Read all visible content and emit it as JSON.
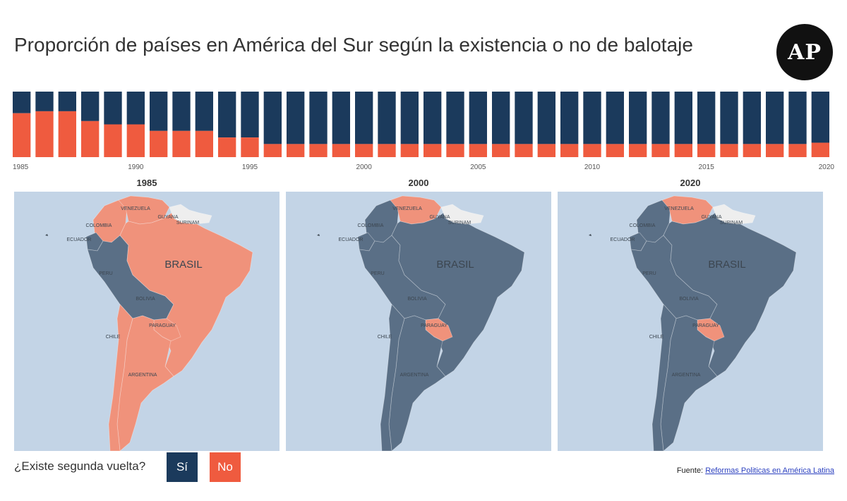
{
  "title": "Proporción de países en América del Sur según la existencia o no de balotaje",
  "logo_text": "AP",
  "chart_data": {
    "type": "bar",
    "stacked": true,
    "x": [
      1985,
      1986,
      1987,
      1988,
      1989,
      1990,
      1991,
      1992,
      1993,
      1994,
      1995,
      1996,
      1997,
      1998,
      1999,
      2000,
      2001,
      2002,
      2003,
      2004,
      2005,
      2006,
      2007,
      2008,
      2009,
      2010,
      2011,
      2012,
      2013,
      2014,
      2015,
      2016,
      2017,
      2018,
      2019,
      2020
    ],
    "x_tick_labels": [
      "1985",
      "1990",
      "1995",
      "2000",
      "2005",
      "2010",
      "2015",
      "2020"
    ],
    "series": [
      {
        "name": "Sí",
        "color": "#1b3a5c",
        "values": [
          0.33,
          0.3,
          0.3,
          0.45,
          0.5,
          0.5,
          0.6,
          0.6,
          0.6,
          0.7,
          0.7,
          0.8,
          0.8,
          0.8,
          0.8,
          0.8,
          0.8,
          0.8,
          0.8,
          0.8,
          0.8,
          0.8,
          0.8,
          0.8,
          0.8,
          0.8,
          0.8,
          0.8,
          0.8,
          0.8,
          0.8,
          0.8,
          0.8,
          0.8,
          0.8,
          0.78
        ]
      },
      {
        "name": "No",
        "color": "#ef5b3f",
        "values": [
          0.67,
          0.7,
          0.7,
          0.55,
          0.5,
          0.5,
          0.4,
          0.4,
          0.4,
          0.3,
          0.3,
          0.2,
          0.2,
          0.2,
          0.2,
          0.2,
          0.2,
          0.2,
          0.2,
          0.2,
          0.2,
          0.2,
          0.2,
          0.2,
          0.2,
          0.2,
          0.2,
          0.2,
          0.2,
          0.2,
          0.2,
          0.2,
          0.2,
          0.2,
          0.2,
          0.22
        ]
      }
    ],
    "ylim": [
      0,
      1
    ]
  },
  "maps": [
    {
      "year": "1985",
      "brasil_color": "#f0927b",
      "paraguay_color": "#f0927b",
      "venezuela_color": "#f0927b",
      "colombia_color": "#f0927b",
      "peru_bolivia_color": "#5a6f86",
      "argentina_color": "#f0927b",
      "chile_color": "#f0927b"
    },
    {
      "year": "2000",
      "brasil_color": "#5a6f86",
      "paraguay_color": "#f0927b",
      "venezuela_color": "#f0927b",
      "colombia_color": "#5a6f86",
      "peru_bolivia_color": "#5a6f86",
      "argentina_color": "#5a6f86",
      "chile_color": "#5a6f86"
    },
    {
      "year": "2020",
      "brasil_color": "#5a6f86",
      "paraguay_color": "#f0927b",
      "venezuela_color": "#f0927b",
      "colombia_color": "#5a6f86",
      "peru_bolivia_color": "#5a6f86",
      "argentina_color": "#5a6f86",
      "chile_color": "#5a6f86"
    }
  ],
  "map_labels": {
    "venezuela": "VENEZUELA",
    "colombia": "COLOMBIA",
    "guyana": "GUYANA",
    "surinam": "SURINAM",
    "ecuador": "ECUADOR",
    "brasil": "BRASIL",
    "peru": "PERU",
    "bolivia": "BOLIVIA",
    "chile": "CHILE",
    "paraguay": "PARAGUAY",
    "argentina": "ARGENTINA"
  },
  "legend": {
    "question": "¿Existe segunda vuelta?",
    "si": "Sí",
    "no": "No"
  },
  "source": {
    "prefix": "Fuente:",
    "link_text": "Reformas Politicas en América Latina"
  }
}
